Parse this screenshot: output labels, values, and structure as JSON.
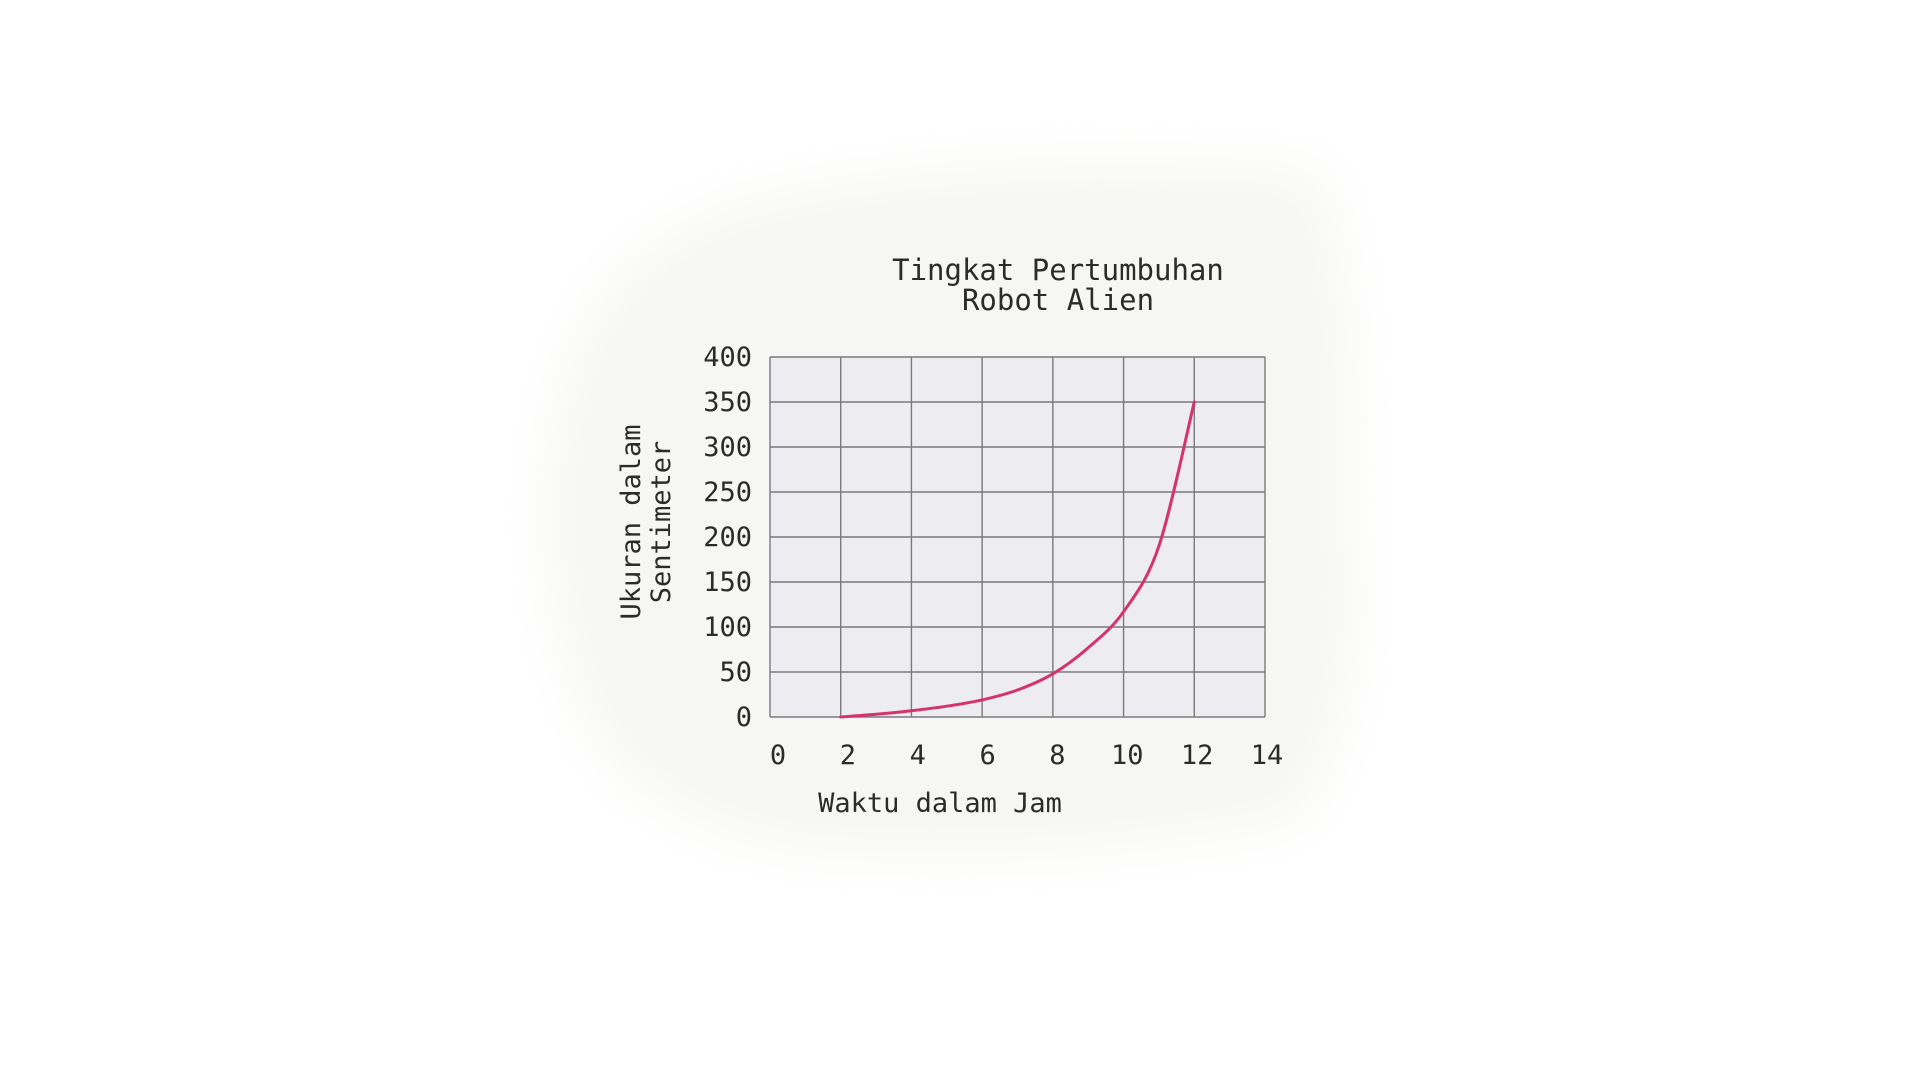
{
  "chart_data": {
    "type": "line",
    "title": [
      "Tingkat Pertumbuhan",
      "Robot Alien"
    ],
    "xlabel": "Waktu dalam Jam",
    "ylabel": [
      "Ukuran dalam",
      "Sentimeter"
    ],
    "x_ticks": [
      "0",
      "2",
      "4",
      "6",
      "8",
      "10",
      "12",
      "14"
    ],
    "y_ticks": [
      "0",
      "50",
      "100",
      "150",
      "200",
      "250",
      "300",
      "350",
      "400"
    ],
    "xlim": [
      0,
      14
    ],
    "ylim": [
      0,
      400
    ],
    "grid": true,
    "series": [
      {
        "color": "#d6336c",
        "x": [
          2,
          3,
          4,
          5,
          6,
          7,
          8,
          9,
          10,
          11,
          12
        ],
        "y": [
          0,
          3,
          7,
          12,
          19,
          30,
          48,
          77,
          117,
          190,
          350
        ]
      }
    ]
  },
  "colors": {
    "plot_background": "#ececf1",
    "grid": "#7a7a7a",
    "paper": "#f6f7f4"
  }
}
